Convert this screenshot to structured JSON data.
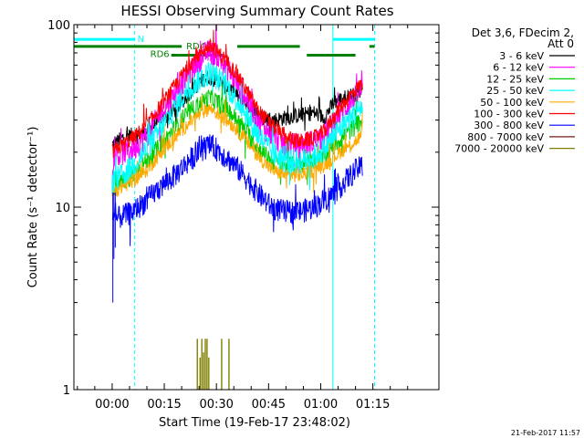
{
  "chart_data": {
    "type": "line",
    "title": "HESSI Observing Summary Count Rates",
    "xlabel": "Start Time (19-Feb-17 23:48:02)",
    "ylabel": "Count Rate (s⁻¹ detector⁻¹)",
    "yscale": "log",
    "ylim": [
      1,
      100
    ],
    "xlim_minutes": [
      -11,
      94
    ],
    "x_ticks": [
      {
        "t": 0,
        "label": "00:00"
      },
      {
        "t": 15,
        "label": "00:15"
      },
      {
        "t": 30,
        "label": "00:30"
      },
      {
        "t": 45,
        "label": "00:45"
      },
      {
        "t": 60,
        "label": "01:00"
      },
      {
        "t": 75,
        "label": "01:15"
      }
    ],
    "y_ticks": [
      {
        "v": 1,
        "label": "1"
      },
      {
        "v": 10,
        "label": "10"
      },
      {
        "v": 100,
        "label": "100"
      }
    ],
    "legend": {
      "header": [
        "Det 3,6, FDecim 2,",
        "Att 0"
      ],
      "placement": "right"
    },
    "series": [
      {
        "name": "3 - 6 keV",
        "color": "#000000",
        "x": [
          0,
          3,
          6,
          10,
          14,
          18,
          22,
          26,
          28,
          30,
          34,
          38,
          42,
          46,
          50,
          54,
          58,
          61,
          64,
          67,
          70,
          72
        ],
        "y": [
          22,
          24,
          25,
          26,
          30,
          34,
          42,
          50,
          52,
          50,
          44,
          38,
          32,
          30,
          31,
          32,
          33,
          31,
          38,
          40,
          42,
          45
        ]
      },
      {
        "name": "6 - 12 keV",
        "color": "#ff00ff",
        "x": [
          0,
          3,
          6,
          10,
          14,
          18,
          22,
          26,
          28,
          30,
          34,
          38,
          42,
          46,
          50,
          54,
          58,
          61,
          64,
          67,
          70,
          72
        ],
        "y": [
          18,
          20,
          21,
          25,
          33,
          42,
          55,
          68,
          72,
          68,
          55,
          42,
          30,
          25,
          22,
          22,
          23,
          25,
          30,
          35,
          40,
          45
        ]
      },
      {
        "name": "12 - 25 keV",
        "color": "#00cc00",
        "x": [
          0,
          3,
          6,
          10,
          14,
          18,
          22,
          26,
          28,
          30,
          34,
          38,
          42,
          46,
          50,
          54,
          58,
          61,
          64,
          67,
          70,
          72
        ],
        "y": [
          13,
          14,
          15,
          18,
          22,
          27,
          33,
          38,
          40,
          38,
          33,
          27,
          21,
          18,
          17,
          17,
          18,
          19,
          22,
          25,
          28,
          30
        ]
      },
      {
        "name": "25 - 50 keV",
        "color": "#00ffff",
        "x": [
          0,
          3,
          6,
          10,
          14,
          18,
          22,
          26,
          28,
          30,
          34,
          38,
          42,
          46,
          50,
          54,
          58,
          61,
          64,
          67,
          70,
          72
        ],
        "y": [
          14,
          15,
          17,
          21,
          27,
          35,
          45,
          52,
          55,
          52,
          44,
          34,
          25,
          20,
          18,
          18,
          19,
          21,
          25,
          29,
          33,
          36
        ]
      },
      {
        "name": "50 - 100 keV",
        "color": "#ffaa00",
        "x": [
          0,
          3,
          6,
          10,
          14,
          18,
          22,
          26,
          28,
          30,
          34,
          38,
          42,
          46,
          50,
          54,
          58,
          61,
          64,
          67,
          70,
          72
        ],
        "y": [
          12,
          13,
          14,
          16,
          20,
          24,
          29,
          33,
          35,
          33,
          29,
          24,
          19,
          16,
          15,
          15,
          16,
          17,
          19,
          21,
          23,
          25
        ]
      },
      {
        "name": "100 - 300 keV",
        "color": "#ff0000",
        "x": [
          0,
          3,
          6,
          10,
          14,
          18,
          22,
          26,
          28,
          30,
          34,
          38,
          42,
          46,
          50,
          54,
          58,
          61,
          64,
          67,
          70,
          72
        ],
        "y": [
          20,
          22,
          24,
          28,
          36,
          46,
          60,
          72,
          76,
          72,
          60,
          46,
          34,
          28,
          24,
          23,
          24,
          26,
          32,
          38,
          44,
          48
        ]
      },
      {
        "name": "300 - 800 keV",
        "color": "#0000ff",
        "x": [
          0,
          3,
          6,
          10,
          14,
          18,
          22,
          26,
          28,
          30,
          34,
          38,
          42,
          46,
          50,
          54,
          58,
          61,
          64,
          67,
          70,
          72
        ],
        "y": [
          8.5,
          9,
          9.5,
          11,
          13,
          15,
          18,
          21,
          22,
          21,
          18,
          15,
          12,
          10,
          9.5,
          9.5,
          10,
          11,
          12,
          14,
          16,
          17
        ]
      },
      {
        "name": "800 - 7000 keV",
        "color": "#7a1f1f",
        "x": [],
        "y": []
      },
      {
        "name": "7000 - 20000 keV",
        "color": "#808000",
        "x": [
          24.5,
          25.3,
          25.8,
          26.3,
          26.8,
          27.3,
          27.8,
          31.5,
          33.6
        ],
        "y": [
          1.9,
          1.5,
          1.9,
          1.6,
          1.9,
          1.9,
          1.5,
          1.9,
          1.9
        ]
      }
    ],
    "annotations": {
      "vlines": [
        {
          "t": 6.5,
          "style": "dashed",
          "color": "#00ffff"
        },
        {
          "t": 63.5,
          "style": "solid",
          "color": "#00ffff"
        },
        {
          "t": 75.5,
          "style": "dashed",
          "color": "#00ffff"
        }
      ],
      "state_bars": [
        {
          "label": "N",
          "color": "#00ffff",
          "y": 83,
          "segments": [
            [
              -11,
              6.5
            ],
            [
              63.5,
              75.5
            ]
          ]
        },
        {
          "label": "RD4",
          "color": "#008000",
          "y": 76,
          "segments": [
            [
              -11,
              20
            ],
            [
              36,
              54
            ],
            [
              74,
              75.5
            ]
          ]
        },
        {
          "label": "RD6",
          "color": "#008000",
          "y": 68,
          "segments": [
            [
              17,
              32
            ],
            [
              56,
              70
            ]
          ]
        }
      ]
    }
  },
  "footer_timestamp": "21-Feb-2017 11:57"
}
